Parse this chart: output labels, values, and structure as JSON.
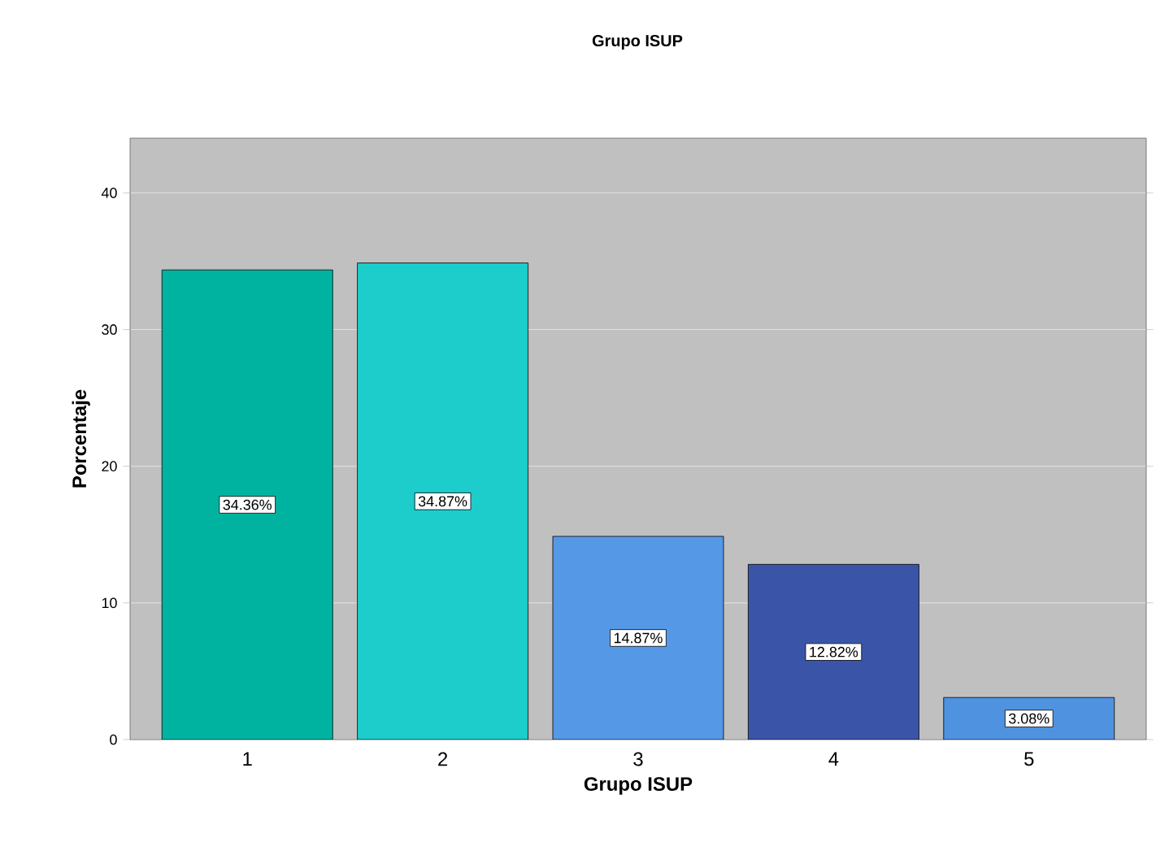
{
  "chart_data": {
    "type": "bar",
    "title": "Grupo ISUP",
    "xlabel": "Grupo ISUP",
    "ylabel": "Porcentaje",
    "categories": [
      "1",
      "2",
      "3",
      "4",
      "5"
    ],
    "values": [
      34.36,
      34.87,
      14.87,
      12.82,
      3.08
    ],
    "value_labels": [
      "34.36%",
      "34.87%",
      "14.87%",
      "12.82%",
      "3.08%"
    ],
    "colors": [
      "#00b3a0",
      "#1ccdcb",
      "#5599e6",
      "#3a55a8",
      "#4f93e0"
    ],
    "ylim": [
      0,
      44
    ],
    "yticks": [
      0,
      10,
      20,
      30,
      40
    ],
    "grid": "y"
  }
}
